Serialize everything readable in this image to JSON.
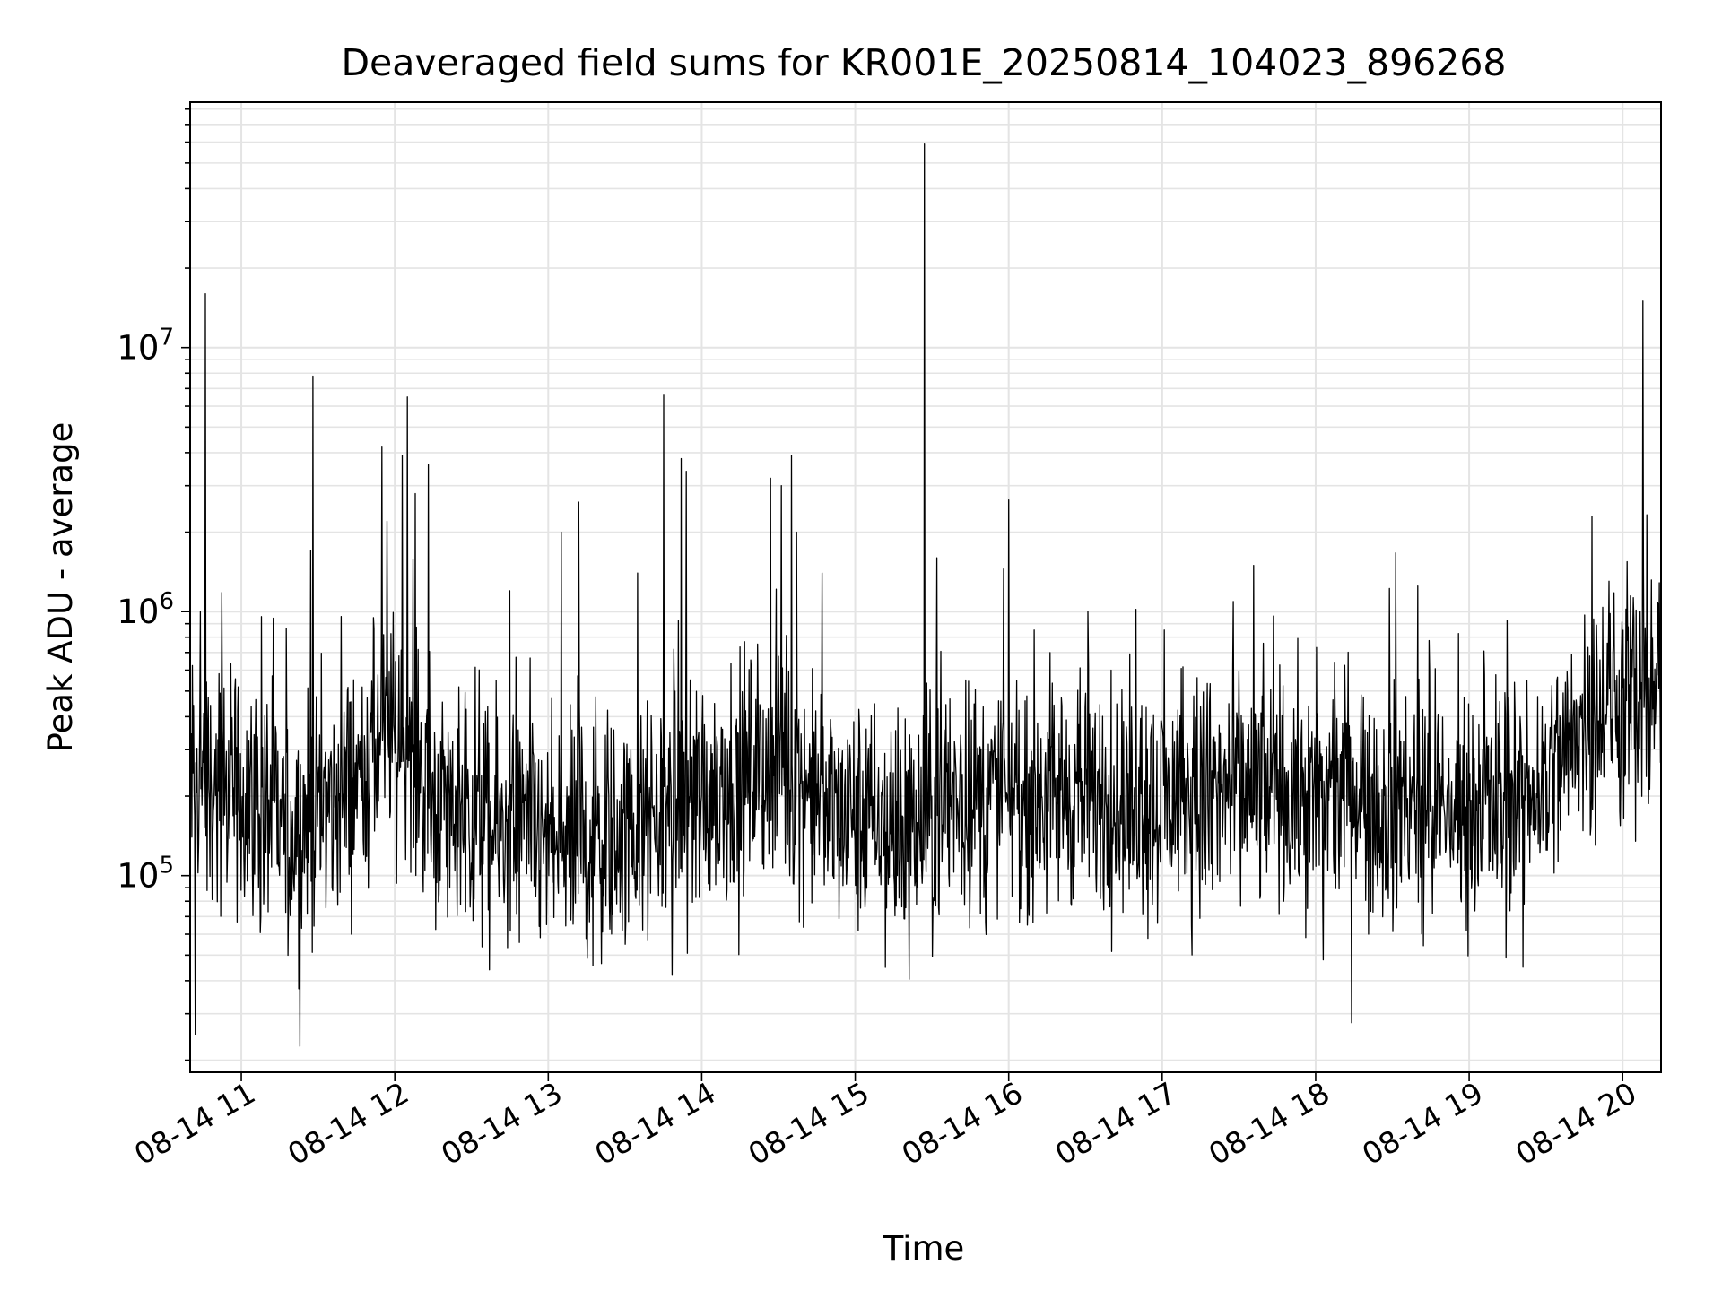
{
  "chart_data": {
    "type": "line",
    "title": "Deaveraged field sums for KR001E_20250814_104023_896268",
    "xlabel": "Time",
    "ylabel": "Peak ADU - average",
    "x_range": [
      "2025-08-14 10:40",
      "2025-08-14 20:15"
    ],
    "xticks": [
      "08-14 11",
      "08-14 12",
      "08-14 13",
      "08-14 14",
      "08-14 15",
      "08-14 16",
      "08-14 17",
      "08-14 18",
      "08-14 19",
      "08-14 20"
    ],
    "ylim": [
      18000,
      85000000
    ],
    "y_scale": "log",
    "yticks": [
      {
        "base": "10",
        "exp": "5",
        "value": 100000
      },
      {
        "base": "10",
        "exp": "6",
        "value": 1000000
      },
      {
        "base": "10",
        "exp": "7",
        "value": 10000000
      }
    ],
    "grid": true,
    "line_color": "#000000",
    "series": [
      {
        "description": "approximate envelope of a dense noisy time series; x as time of day",
        "baseline": [
          {
            "x": "10:40",
            "y": 230000
          },
          {
            "x": "11:00",
            "y": 210000
          },
          {
            "x": "11:20",
            "y": 150000
          },
          {
            "x": "11:40",
            "y": 200000
          },
          {
            "x": "12:00",
            "y": 370000
          },
          {
            "x": "12:20",
            "y": 180000
          },
          {
            "x": "12:40",
            "y": 150000
          },
          {
            "x": "13:00",
            "y": 130000
          },
          {
            "x": "13:30",
            "y": 140000
          },
          {
            "x": "14:00",
            "y": 210000
          },
          {
            "x": "14:30",
            "y": 280000
          },
          {
            "x": "14:50",
            "y": 180000
          },
          {
            "x": "15:20",
            "y": 140000
          },
          {
            "x": "15:40",
            "y": 200000
          },
          {
            "x": "16:00",
            "y": 210000
          },
          {
            "x": "16:30",
            "y": 200000
          },
          {
            "x": "17:00",
            "y": 190000
          },
          {
            "x": "17:30",
            "y": 210000
          },
          {
            "x": "18:00",
            "y": 200000
          },
          {
            "x": "18:30",
            "y": 190000
          },
          {
            "x": "19:00",
            "y": 180000
          },
          {
            "x": "19:30",
            "y": 230000
          },
          {
            "x": "19:50",
            "y": 450000
          },
          {
            "x": "20:15",
            "y": 480000
          }
        ],
        "spikes": [
          {
            "x": "10:42",
            "y": 25000
          },
          {
            "x": "10:46",
            "y": 16000000
          },
          {
            "x": "10:44",
            "y": 1000000
          },
          {
            "x": "11:28",
            "y": 7800000
          },
          {
            "x": "11:27",
            "y": 1700000
          },
          {
            "x": "11:55",
            "y": 4200000
          },
          {
            "x": "11:57",
            "y": 2200000
          },
          {
            "x": "12:05",
            "y": 6500000
          },
          {
            "x": "12:03",
            "y": 3900000
          },
          {
            "x": "12:08",
            "y": 2800000
          },
          {
            "x": "12:13",
            "y": 3600000
          },
          {
            "x": "12:37",
            "y": 44000
          },
          {
            "x": "12:45",
            "y": 1200000
          },
          {
            "x": "13:05",
            "y": 2000000
          },
          {
            "x": "13:12",
            "y": 2600000
          },
          {
            "x": "13:35",
            "y": 1400000
          },
          {
            "x": "13:45",
            "y": 6600000
          },
          {
            "x": "13:52",
            "y": 3800000
          },
          {
            "x": "13:54",
            "y": 3400000
          },
          {
            "x": "14:27",
            "y": 3200000
          },
          {
            "x": "14:31",
            "y": 3000000
          },
          {
            "x": "14:35",
            "y": 3900000
          },
          {
            "x": "14:37",
            "y": 2000000
          },
          {
            "x": "14:47",
            "y": 1400000
          },
          {
            "x": "15:27",
            "y": 59000000
          },
          {
            "x": "15:32",
            "y": 1600000
          },
          {
            "x": "15:58",
            "y": 1450000
          },
          {
            "x": "16:31",
            "y": 1000000
          },
          {
            "x": "16:40",
            "y": 600000
          },
          {
            "x": "18:03",
            "y": 48000
          },
          {
            "x": "18:40",
            "y": 1250000
          },
          {
            "x": "19:21",
            "y": 45000
          },
          {
            "x": "19:48",
            "y": 2300000
          },
          {
            "x": "20:08",
            "y": 15000000
          },
          {
            "x": "20:05",
            "y": 135000
          }
        ]
      }
    ]
  }
}
